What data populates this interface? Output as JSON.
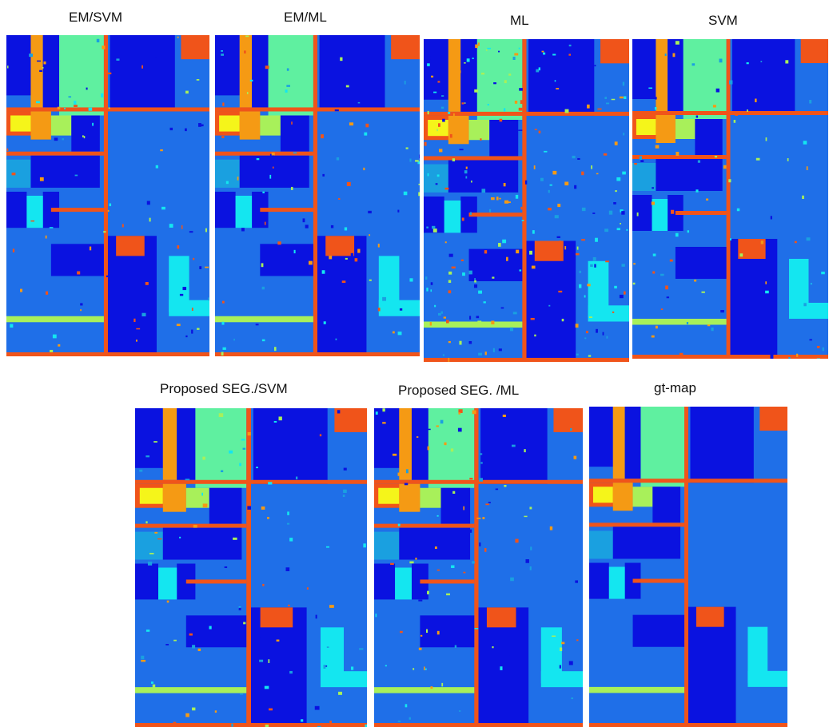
{
  "figure": {
    "panels": [
      {
        "id": "em-svm",
        "label": "EM/SVM"
      },
      {
        "id": "em-ml",
        "label": "EM/ML"
      },
      {
        "id": "ml",
        "label": "ML"
      },
      {
        "id": "svm",
        "label": "SVM"
      },
      {
        "id": "seg-svm",
        "label": "Proposed SEG./SVM"
      },
      {
        "id": "seg-ml",
        "label": "Proposed SEG. /ML"
      },
      {
        "id": "gt-map",
        "label": "gt-map"
      }
    ],
    "colors": {
      "background_class": "#1f6fe8",
      "dark_blue": "#0a12e0",
      "mid_blue": "#2b7fe6",
      "cyan": "#14e6f0",
      "teal": "#1aa0e0",
      "green": "#5ff0a0",
      "yellow_green": "#a8f05a",
      "yellow": "#f5f51a",
      "orange": "#f59a14",
      "red_orange": "#f0541a"
    }
  }
}
